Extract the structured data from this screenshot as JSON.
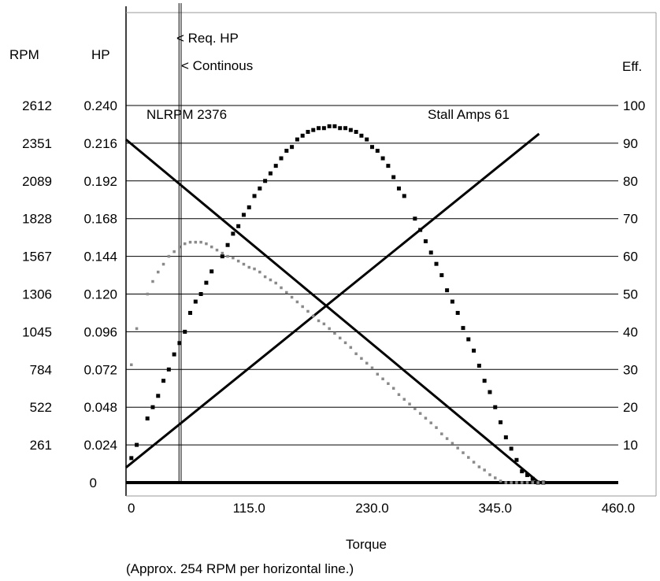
{
  "chart_data": {
    "type": "scatter",
    "title": "",
    "xlabel": "Torque",
    "footnote": "(Approx. 254 RPM per horizontal line.)",
    "header": {
      "rpm": "RPM",
      "hp": "HP",
      "eff": "Eff.",
      "req_hp_label": "< Req. HP",
      "continuous_label": "< Continous"
    },
    "annotations": {
      "nlrpm": "NLRPM  2376",
      "stall": "Stall Amps 61"
    },
    "xlim": [
      0,
      460
    ],
    "x_ticks": [
      "0",
      "115.0",
      "230.0",
      "345.0",
      "460.0"
    ],
    "rpm_ticks": [
      "0",
      "261",
      "522",
      "784",
      "1045",
      "1306",
      "1567",
      "1828",
      "2089",
      "2351",
      "2612"
    ],
    "hp_ticks": [
      "",
      "0.024",
      "0.048",
      "0.072",
      "0.096",
      "0.120",
      "0.144",
      "0.168",
      "0.192",
      "0.216",
      "0.240"
    ],
    "eff_ticks": [
      "",
      "10",
      "20",
      "30",
      "40",
      "50",
      "60",
      "70",
      "80",
      "90",
      "100"
    ],
    "eff_range": [
      0,
      100
    ],
    "rpm_range": [
      0,
      2612
    ],
    "hp_range": [
      0,
      0.24
    ],
    "req_hp_torque": 49.5,
    "continuous_torque": 51.5,
    "series": [
      {
        "name": "RPM",
        "style": "line",
        "color": "#000000",
        "x": [
          0,
          386
        ],
        "y_rpm": [
          2376,
          0
        ]
      },
      {
        "name": "Amps",
        "style": "line",
        "color": "#000000",
        "x": [
          0,
          386
        ],
        "y_eff": [
          4,
          92.5
        ]
      },
      {
        "name": "Efficiency",
        "style": "dots",
        "color": "#000000",
        "x": [
          5,
          10,
          20,
          25,
          30,
          35,
          40,
          45,
          50,
          55,
          60,
          65,
          70,
          75,
          80,
          90,
          95,
          100,
          105,
          110,
          115,
          120,
          125,
          130,
          135,
          140,
          145,
          150,
          155,
          160,
          165,
          170,
          175,
          180,
          185,
          190,
          195,
          200,
          205,
          210,
          215,
          220,
          225,
          230,
          235,
          240,
          245,
          250,
          255,
          260,
          270,
          275,
          280,
          285,
          290,
          295,
          300,
          305,
          310,
          315,
          320,
          325,
          330,
          335,
          340,
          345,
          350,
          355,
          360,
          365,
          370,
          375,
          380,
          385,
          390
        ],
        "y_eff": [
          6.5,
          10,
          17,
          20,
          23,
          27,
          30,
          34,
          37,
          40,
          45,
          48,
          50,
          53,
          56,
          60,
          63,
          66,
          68,
          71,
          73,
          76,
          78,
          80,
          82,
          84,
          86,
          88,
          89,
          91,
          92,
          93,
          93.5,
          94,
          94,
          94.5,
          94.5,
          94,
          94,
          93.5,
          93,
          92,
          91,
          89,
          88,
          86,
          84,
          81,
          78,
          76,
          70,
          67,
          64,
          61,
          58,
          55,
          51,
          48,
          45,
          41,
          38,
          35,
          31,
          27,
          24,
          20,
          16,
          12,
          9,
          6,
          3,
          2,
          1,
          0,
          0
        ]
      },
      {
        "name": "HP",
        "style": "dots",
        "color": "#8a8a8a",
        "x": [
          5,
          10,
          20,
          25,
          30,
          35,
          40,
          45,
          50,
          55,
          60,
          65,
          70,
          75,
          80,
          85,
          90,
          95,
          100,
          105,
          110,
          115,
          120,
          125,
          130,
          135,
          140,
          145,
          150,
          155,
          160,
          165,
          170,
          175,
          180,
          185,
          190,
          195,
          200,
          205,
          210,
          215,
          220,
          225,
          230,
          235,
          240,
          245,
          250,
          255,
          260,
          265,
          270,
          275,
          280,
          285,
          290,
          295,
          300,
          305,
          310,
          315,
          320,
          325,
          330,
          335,
          340,
          345,
          350,
          355,
          360,
          365,
          370,
          375,
          380,
          385,
          390
        ],
        "y_hp": [
          0.075,
          0.098,
          0.12,
          0.128,
          0.134,
          0.139,
          0.144,
          0.147,
          0.15,
          0.152,
          0.153,
          0.153,
          0.153,
          0.152,
          0.15,
          0.148,
          0.146,
          0.144,
          0.143,
          0.141,
          0.139,
          0.137,
          0.136,
          0.134,
          0.131,
          0.129,
          0.127,
          0.124,
          0.121,
          0.118,
          0.115,
          0.112,
          0.109,
          0.106,
          0.103,
          0.101,
          0.098,
          0.095,
          0.092,
          0.089,
          0.086,
          0.082,
          0.079,
          0.076,
          0.073,
          0.069,
          0.066,
          0.063,
          0.06,
          0.056,
          0.053,
          0.05,
          0.047,
          0.044,
          0.041,
          0.038,
          0.035,
          0.031,
          0.028,
          0.025,
          0.022,
          0.019,
          0.016,
          0.013,
          0.01,
          0.008,
          0.005,
          0.003,
          0.001,
          0.0,
          0.0,
          0.0,
          0.0,
          0.0,
          0.0,
          0.0,
          0.0
        ]
      }
    ]
  }
}
